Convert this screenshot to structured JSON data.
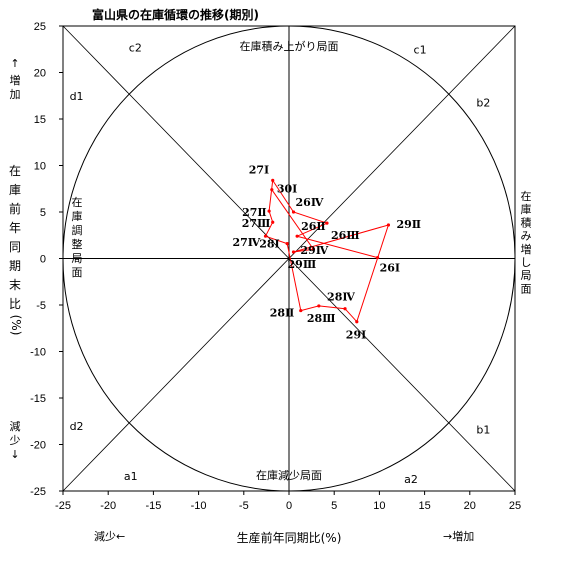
{
  "chart_data": {
    "type": "scatter",
    "title": "富山県の在庫循環の推移(期別)",
    "xlabel": "生産前年同期比(%)",
    "ylabel_chars": [
      "在",
      "庫",
      "前",
      "年",
      "同",
      "期",
      "末",
      "比",
      "(%)"
    ],
    "xlim": [
      -25,
      25
    ],
    "ylim": [
      -25,
      25
    ],
    "xticks": [
      "-25",
      "-20",
      "-15",
      "-10",
      "-5",
      "0",
      "5",
      "10",
      "15",
      "20",
      "25"
    ],
    "yticks": [
      "25",
      "20",
      "15",
      "10",
      "5",
      "0",
      "-5",
      "-10",
      "-15",
      "-20",
      "-25"
    ],
    "x_increase": "→増加",
    "x_decrease": "減少←",
    "y_increase_arrow": "↑",
    "y_increase_chars": [
      "増",
      "加"
    ],
    "y_decrease_chars": [
      "減",
      "少"
    ],
    "y_decrease_arrow": "↓",
    "phases": {
      "top": "在庫積み上がり局面",
      "bottom": "在庫減少局面",
      "left_chars": [
        "在",
        "庫",
        "調",
        "整",
        "局",
        "面"
      ],
      "right_chars": [
        "在",
        "庫",
        "積",
        "み",
        "増",
        "し",
        "局",
        "面"
      ]
    },
    "region_labels": [
      {
        "text": "c2",
        "x": -17,
        "y": 22.7
      },
      {
        "text": "c1",
        "x": 14.5,
        "y": 22.5
      },
      {
        "text": "d1",
        "x": -23.5,
        "y": 17.5
      },
      {
        "text": "b2",
        "x": 21.5,
        "y": 16.8
      },
      {
        "text": "d2",
        "x": -23.5,
        "y": -18
      },
      {
        "text": "b1",
        "x": 21.5,
        "y": -18.4
      },
      {
        "text": "a1",
        "x": -17.5,
        "y": -23.4
      },
      {
        "text": "a2",
        "x": 13.5,
        "y": -23.7
      }
    ],
    "series": [
      {
        "color": "#ff0000",
        "points": [
          {
            "label": "26Ⅰ",
            "x": 9.8,
            "y": 0.1
          },
          {
            "label": "26Ⅱ",
            "x": 0.9,
            "y": 2.4
          },
          {
            "label": "26Ⅲ",
            "x": 4.2,
            "y": 3.8
          },
          {
            "label": "26Ⅳ",
            "x": 0.5,
            "y": 5.0
          },
          {
            "label": "27Ⅰ",
            "x": -1.8,
            "y": 8.4
          },
          {
            "label": "27Ⅱ",
            "x": -2.2,
            "y": 5.1
          },
          {
            "label": "27Ⅲ",
            "x": -1.8,
            "y": 3.9
          },
          {
            "label": "27Ⅳ",
            "x": -2.6,
            "y": 2.4
          },
          {
            "label": "28Ⅰ",
            "x": -0.2,
            "y": 1.6
          },
          {
            "label": "28Ⅱ",
            "x": 1.3,
            "y": -5.6
          },
          {
            "label": "28Ⅲ",
            "x": 3.3,
            "y": -5.1
          },
          {
            "label": "28Ⅳ",
            "x": 6.2,
            "y": -5.4
          },
          {
            "label": "29Ⅰ",
            "x": 7.5,
            "y": -6.8
          },
          {
            "label": "29Ⅱ",
            "x": 11.0,
            "y": 3.6
          },
          {
            "label": "29Ⅲ",
            "x": 0.5,
            "y": 0.7
          },
          {
            "label": "29Ⅳ",
            "x": 2.7,
            "y": 1.0
          },
          {
            "label": "30Ⅰ",
            "x": -1.9,
            "y": 7.4
          }
        ]
      }
    ]
  }
}
